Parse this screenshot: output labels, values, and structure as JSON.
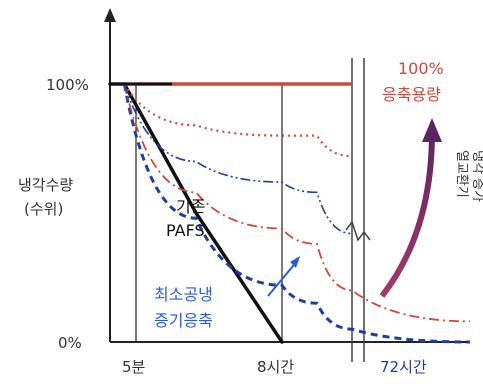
{
  "chart_data": {
    "type": "line",
    "ylabel": [
      "냉각수량",
      "(수위)"
    ],
    "y_ticks": [
      "100%",
      "0%"
    ],
    "x_ticks": [
      "5분",
      "8시간",
      "72시간"
    ],
    "ylim": [
      0,
      100
    ],
    "axis_break": true,
    "grid": false,
    "series": [
      {
        "name": "기존 PAFS",
        "color": "#111111",
        "style": "solid",
        "points": [
          [
            0,
            100
          ],
          [
            0.5,
            100
          ],
          [
            3,
            50
          ],
          [
            6,
            0
          ]
        ]
      },
      {
        "color": "#1f3f9c",
        "style": "dashed",
        "points": [
          [
            0.5,
            100
          ],
          [
            3,
            48
          ],
          [
            6,
            22
          ],
          [
            9,
            15
          ],
          [
            12,
            5
          ],
          [
            15,
            0
          ]
        ]
      },
      {
        "color": "#cc4a3a",
        "style": "dashdot",
        "points": [
          [
            0.5,
            100
          ],
          [
            3,
            58
          ],
          [
            6,
            44
          ],
          [
            9,
            38
          ],
          [
            12,
            20
          ],
          [
            15,
            8
          ]
        ]
      },
      {
        "color": "#1f3f9c",
        "style": "dashdotdot",
        "points": [
          [
            0.5,
            100
          ],
          [
            3,
            70
          ],
          [
            6,
            62
          ],
          [
            9,
            58
          ],
          [
            12,
            42
          ]
        ]
      },
      {
        "color": "#cc4a3a",
        "style": "dotted",
        "points": [
          [
            0.5,
            100
          ],
          [
            3,
            84
          ],
          [
            6,
            80
          ],
          [
            9,
            80
          ],
          [
            12,
            72
          ]
        ]
      },
      {
        "name": "100% 응축용량",
        "color": "#cc4a3a",
        "style": "solid",
        "points": [
          [
            0.5,
            100
          ],
          [
            12,
            100
          ]
        ]
      }
    ],
    "annotations": {
      "baseline_label": [
        "기존",
        "PAFS"
      ],
      "min_label": [
        "최소공냉",
        "증기응축"
      ],
      "capacity_label": [
        "100%",
        "응축용량"
      ],
      "arrow_label": [
        "열교환기",
        "냉각 증가"
      ]
    }
  }
}
